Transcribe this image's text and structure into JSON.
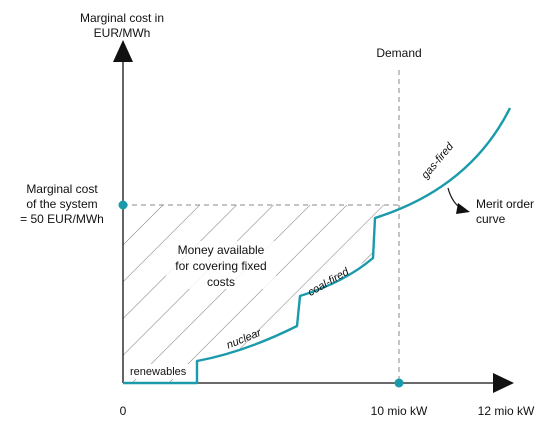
{
  "y_axis_title": [
    "Marginal cost in",
    "EUR/MWh"
  ],
  "demand_label": "Demand",
  "marginal_cost_label": [
    "Marginal cost",
    "of the system",
    "= 50 EUR/MWh"
  ],
  "area_label": [
    "Money available",
    "for covering fixed",
    "costs"
  ],
  "merit_order_label": [
    "Merit order",
    "curve"
  ],
  "x_ticks": [
    "0",
    "10 mio kW",
    "12 mio kW"
  ],
  "segments": [
    "renewables",
    "nuclear",
    "coal-fired",
    "gas-fired"
  ],
  "colors": {
    "curve": "#1a9aab",
    "axis": "#111111",
    "guide": "#888888",
    "hatch": "#555555"
  }
}
